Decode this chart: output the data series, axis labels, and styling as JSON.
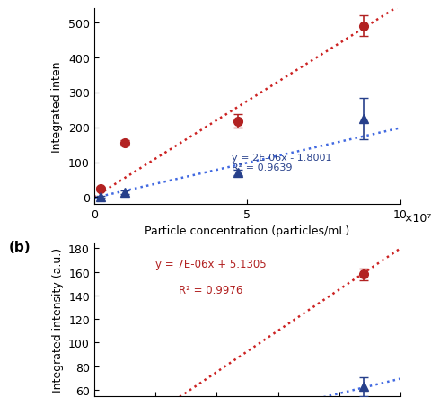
{
  "panel_a": {
    "red_x": [
      2000000.0,
      10000000.0,
      47000000.0,
      88000000.0
    ],
    "red_y": [
      25,
      155,
      218,
      490
    ],
    "red_yerr": [
      5,
      8,
      20,
      30
    ],
    "blue_x": [
      2000000.0,
      10000000.0,
      47000000.0,
      88000000.0
    ],
    "blue_y": [
      2,
      15,
      70,
      225
    ],
    "blue_yerr": [
      3,
      5,
      8,
      60
    ],
    "red_fit_slope": 5.5e-06,
    "red_fit_intercept": 0,
    "blue_fit_slope": 2e-06,
    "blue_fit_intercept": -1.8001,
    "blue_eq": "y = 2E-06x - 1.8001",
    "blue_r2": "R² = 0.9639",
    "ylabel": "Integrated inten",
    "xlabel": "Particle concentration (particles/mL)",
    "xlim": [
      0,
      100000000.0
    ],
    "ylim": [
      -20,
      540
    ],
    "yticks": [
      0,
      100,
      200,
      300,
      400,
      500
    ],
    "xticks": [
      0,
      50000000.0,
      100000000.0
    ],
    "xticklabels": [
      "0",
      "5",
      "10"
    ],
    "x_exp_label": "×10⁷"
  },
  "panel_b": {
    "red_x": [
      22000000.0
    ],
    "red_y": [
      158
    ],
    "red_yerr": [
      5
    ],
    "blue_x": [
      22000000.0
    ],
    "blue_y": [
      63
    ],
    "blue_yerr": [
      8
    ],
    "red_fit_slope": 7e-06,
    "red_fit_intercept": 5.1305,
    "blue_fit_slope": 2.5e-06,
    "blue_fit_intercept": 7,
    "red_eq": "y = 7E-06x + 5.1305",
    "red_r2": "R² = 0.9976",
    "ylabel": "Integrated intensity (a.u.)",
    "xlim": [
      0,
      25000000.0
    ],
    "ylim": [
      55,
      185
    ],
    "yticks": [
      60,
      80,
      100,
      120,
      140,
      160,
      180
    ],
    "panel_label": "(b)"
  },
  "red_color": "#B22222",
  "blue_color": "#27408B",
  "dotted_red": "#CC2222",
  "dotted_blue": "#4169E1"
}
